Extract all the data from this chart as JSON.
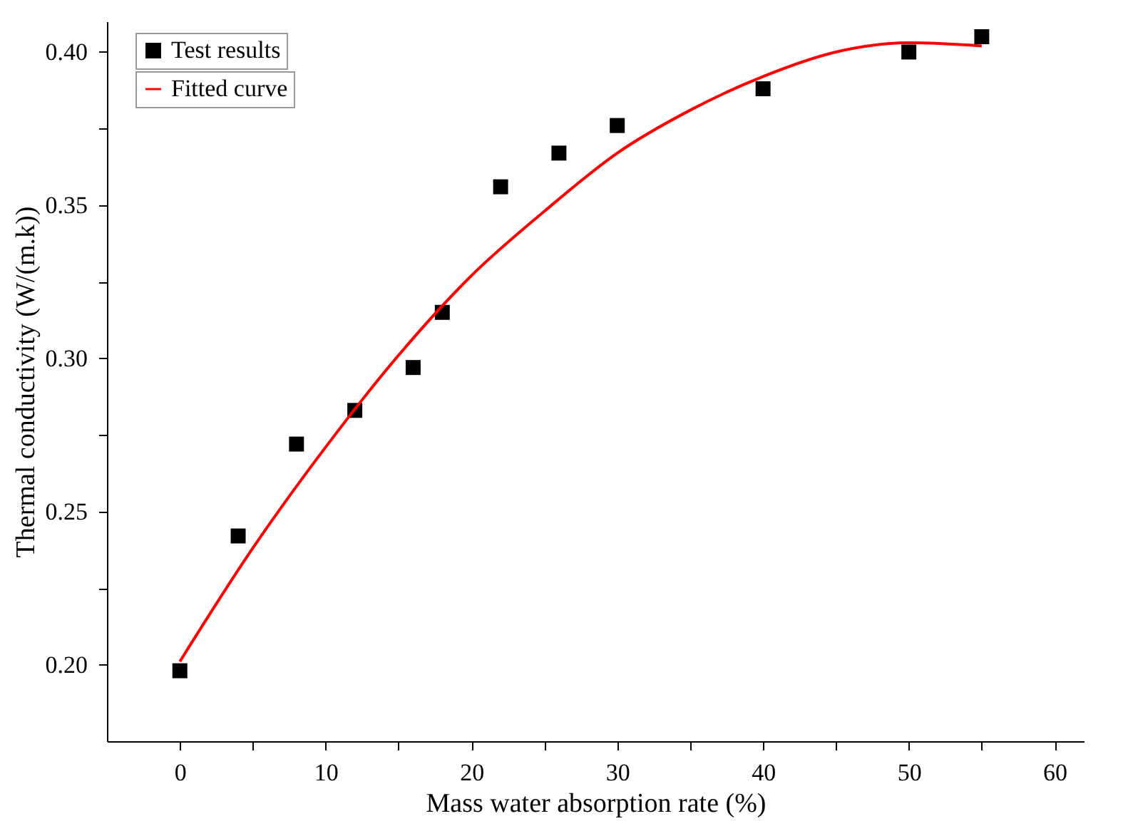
{
  "chart_data": {
    "type": "scatter",
    "xlabel": "Mass water absorption rate (%)",
    "ylabel": "Thermal conductivity (W/(m.k))",
    "xlim": [
      -5,
      62
    ],
    "ylim": [
      0.175,
      0.41
    ],
    "xticks": [
      0,
      {
        "value": 5,
        "label": null
      },
      10,
      {
        "value": 15,
        "label": null
      },
      20,
      {
        "value": 25,
        "label": null
      },
      30,
      {
        "value": 35,
        "label": null
      },
      40,
      {
        "value": 45,
        "label": null
      },
      50,
      {
        "value": 55,
        "label": null
      },
      60
    ],
    "yticks": [
      {
        "value": 0.2,
        "label": "0.20"
      },
      {
        "value": 0.225,
        "label": null
      },
      {
        "value": 0.25,
        "label": "0.25"
      },
      {
        "value": 0.275,
        "label": null
      },
      {
        "value": 0.3,
        "label": "0.30"
      },
      {
        "value": 0.325,
        "label": null
      },
      {
        "value": 0.35,
        "label": "0.35"
      },
      {
        "value": 0.375,
        "label": null
      },
      {
        "value": 0.4,
        "label": "0.40"
      }
    ],
    "grid": false,
    "legend": "top left",
    "series": [
      {
        "name": "Test results",
        "marker": "square",
        "color": "#000000",
        "x": [
          0,
          4,
          8,
          12,
          16,
          18,
          22,
          26,
          30,
          40,
          50,
          55
        ],
        "values": [
          0.198,
          0.242,
          0.272,
          0.283,
          0.297,
          0.315,
          0.356,
          0.367,
          0.376,
          0.388,
          0.4,
          0.405
        ]
      },
      {
        "name": "Fitted curve",
        "type": "line",
        "marker": "none",
        "line_style": "solid",
        "color": "#ff0000",
        "x": [
          0,
          5,
          10,
          15,
          20,
          25,
          30,
          35,
          40,
          45,
          50,
          55
        ],
        "values": [
          0.201,
          0.238,
          0.271,
          0.301,
          0.327,
          0.348,
          0.367,
          0.381,
          0.392,
          0.4,
          0.403,
          0.402
        ]
      }
    ]
  }
}
